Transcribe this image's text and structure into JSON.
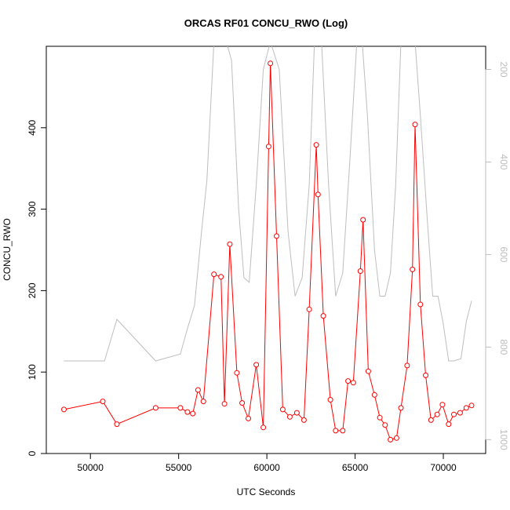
{
  "chart_data": {
    "type": "line",
    "title": "ORCAS RF01 CONCU_RWO (Log)",
    "xlabel": "UTC Seconds",
    "ylabel": "CONCU_RWO",
    "xlim": [
      47500,
      72400
    ],
    "ylim": [
      0,
      500
    ],
    "y2lim_reversed": [
      150,
      1030
    ],
    "x_ticks": [
      50000,
      55000,
      60000,
      65000,
      70000
    ],
    "y_ticks": [
      0,
      100,
      200,
      300,
      400
    ],
    "y2_ticks": [
      200,
      400,
      600,
      800,
      1000
    ],
    "grid": false,
    "legend": "none",
    "colors": {
      "series": "#ff0000",
      "secondary": "#bebebe",
      "axis": "#000000",
      "secondary_axis": "#bdbdbd"
    },
    "series": [
      {
        "x": [
          48500,
          50700,
          51500,
          53700,
          55100,
          55500,
          55800,
          56100,
          56400,
          57000,
          57400,
          57600,
          57900,
          58300,
          58600,
          58950,
          59400,
          59800,
          60100,
          60200,
          60550,
          60900,
          61300,
          61700,
          62100,
          62400,
          62800,
          62900,
          63200,
          63600,
          63900,
          64300,
          64600,
          64900,
          65300,
          65450,
          65750,
          66100,
          66400,
          66700,
          67000,
          67350,
          67600,
          67950,
          68250,
          68400,
          68700,
          69000,
          69300,
          69650,
          69950,
          70300,
          70600,
          70950,
          71300,
          71600
        ],
        "y": [
          54,
          64,
          36,
          56,
          56,
          51,
          49,
          78,
          64,
          220,
          217,
          61,
          257,
          99,
          62,
          43,
          109,
          32,
          377,
          479,
          267,
          54,
          45,
          50,
          41,
          177,
          379,
          318,
          169,
          66,
          28,
          28,
          89,
          87,
          224,
          287,
          101,
          72,
          44,
          35,
          17,
          19,
          56,
          108,
          226,
          404,
          183,
          96,
          41,
          48,
          60,
          36,
          48,
          50,
          56,
          59
        ]
      },
      {
        "x": [
          48500,
          50800,
          51500,
          53700,
          55100,
          55500,
          55900,
          56300,
          56600,
          57000,
          57300,
          57700,
          58000,
          58400,
          58700,
          59000,
          59400,
          59800,
          60200,
          60700,
          61200,
          61600,
          62000,
          62400,
          62700,
          63100,
          63500,
          63900,
          64300,
          64700,
          65100,
          65400,
          65700,
          66100,
          66400,
          66700,
          67000,
          67300,
          67600,
          68000,
          68400,
          68700,
          69100,
          69400,
          69700,
          70000,
          70300,
          70600,
          71000,
          71300,
          71600
        ],
        "y2": [
          830,
          830,
          740,
          830,
          815,
          760,
          710,
          550,
          440,
          140,
          140,
          140,
          180,
          500,
          650,
          660,
          450,
          200,
          140,
          200,
          550,
          690,
          650,
          450,
          140,
          140,
          450,
          690,
          640,
          400,
          140,
          140,
          300,
          590,
          690,
          690,
          640,
          450,
          140,
          140,
          140,
          300,
          530,
          690,
          690,
          750,
          830,
          830,
          825,
          745,
          700
        ]
      }
    ]
  }
}
